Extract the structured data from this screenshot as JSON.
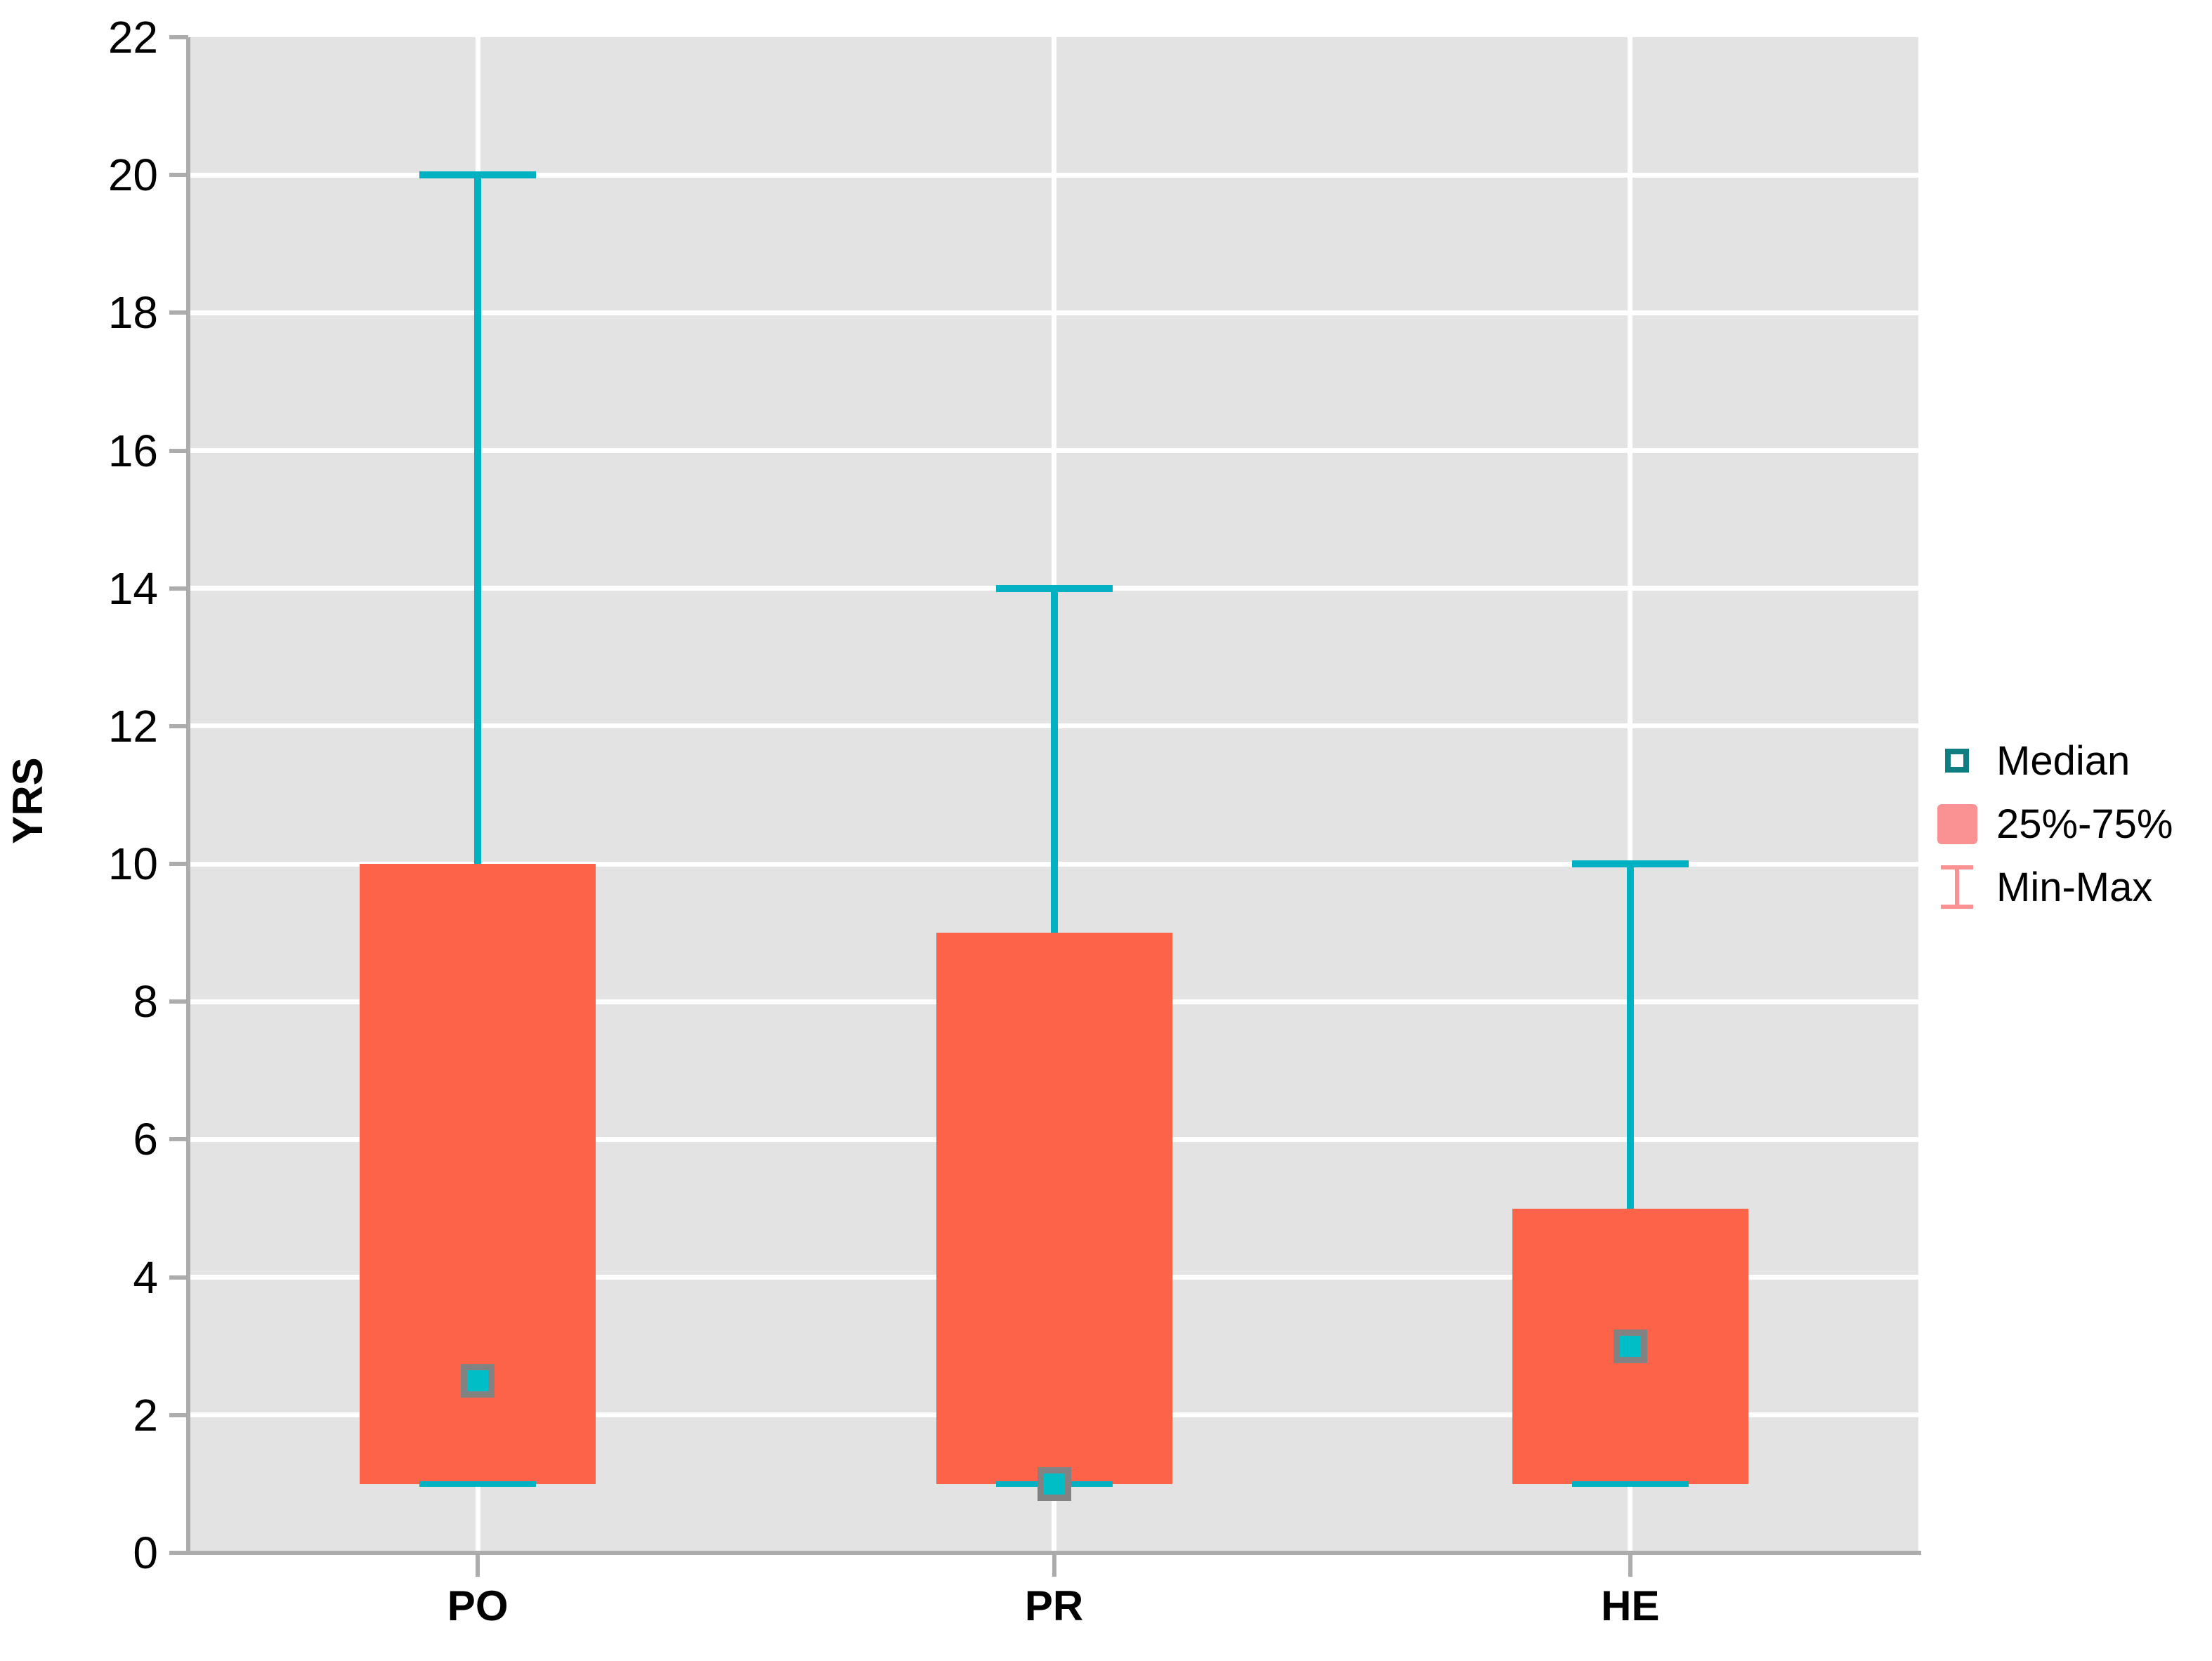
{
  "chart_data": {
    "type": "box",
    "title": "",
    "ylabel": "YRS",
    "xlabel": "",
    "ylim": [
      0,
      22
    ],
    "yticks": [
      0,
      2,
      4,
      6,
      8,
      10,
      12,
      14,
      16,
      18,
      20,
      22
    ],
    "grid": true,
    "categories": [
      "PO",
      "PR",
      "HE"
    ],
    "series": [
      {
        "category": "PO",
        "min": 1,
        "q1": 1,
        "median": 2.5,
        "q3": 10,
        "max": 20
      },
      {
        "category": "PR",
        "min": 1,
        "q1": 1,
        "median": 1,
        "q3": 9,
        "max": 14
      },
      {
        "category": "HE",
        "min": 1,
        "q1": 1,
        "median": 3,
        "q3": 5,
        "max": 10
      }
    ],
    "legend": {
      "position": "right",
      "items": [
        {
          "label": "Median",
          "marker": "open-square",
          "color": "#0F7E82"
        },
        {
          "label": "25%-75%",
          "marker": "filled-square",
          "color": "#FA9193"
        },
        {
          "label": "Min-Max",
          "marker": "whisker",
          "color": "#FA9193"
        }
      ]
    },
    "colors": {
      "box_fill": "#FD6348",
      "whisker": "#00B1C1",
      "median_fill": "#00BEC6",
      "median_border": "#828282",
      "plot_background": "#E3E3E3",
      "gridline": "#FFFFFF",
      "axis": "#ACACAC",
      "text": "#000000"
    }
  }
}
